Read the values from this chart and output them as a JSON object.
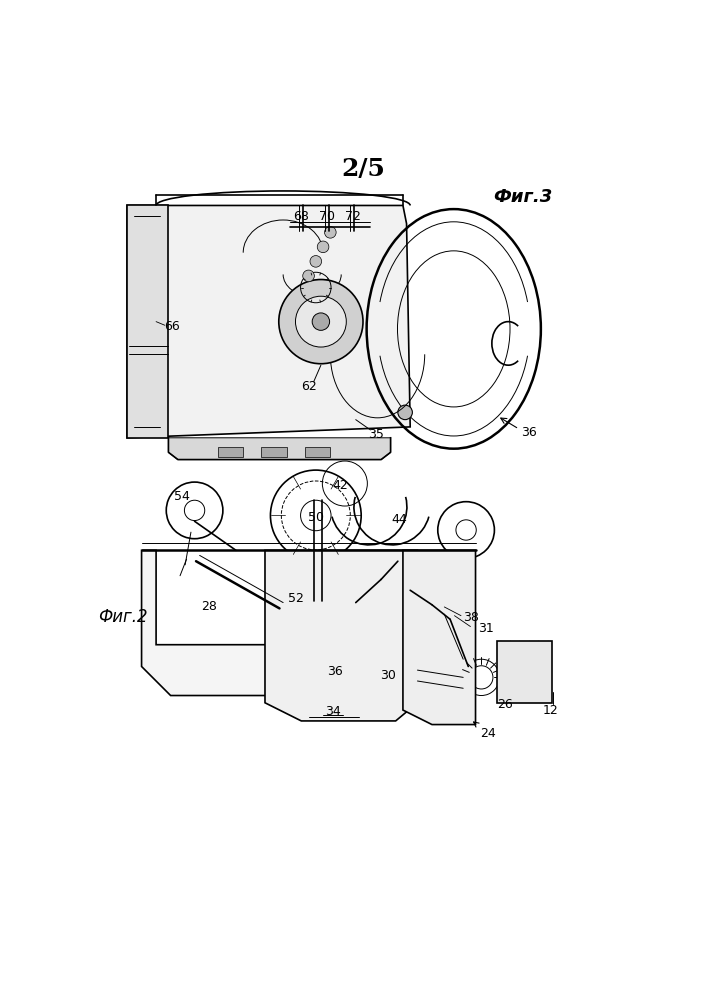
{
  "page_number": "2/5",
  "fig2_label": "Фиг.2",
  "fig3_label": "Фиг.3",
  "bg_color": "#ffffff",
  "line_color": "#000000",
  "fig_size": [
    7.26,
    9.99
  ],
  "dpi": 100
}
